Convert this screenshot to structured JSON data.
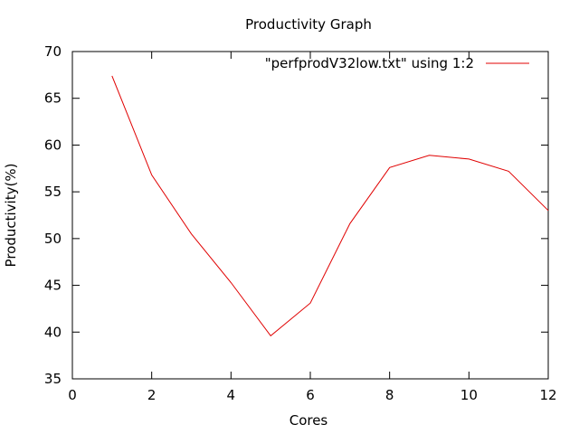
{
  "chart_data": {
    "type": "line",
    "title": "Productivity Graph",
    "xlabel": "Cores",
    "ylabel": "Productivity(%)",
    "xlim": [
      0,
      12
    ],
    "ylim": [
      35,
      70
    ],
    "x_ticks": [
      0,
      2,
      4,
      6,
      8,
      10,
      12
    ],
    "y_ticks": [
      35,
      40,
      45,
      50,
      55,
      60,
      65,
      70
    ],
    "grid": false,
    "legend_position": "top-right",
    "series": [
      {
        "name": "\"perfprodV32low.txt\" using 1:2",
        "color": "#e00000",
        "x": [
          1,
          2,
          3,
          4,
          5,
          6,
          7,
          8,
          9,
          10,
          11,
          12
        ],
        "y": [
          67.4,
          56.8,
          50.5,
          45.3,
          39.6,
          43.1,
          51.6,
          57.6,
          58.9,
          58.5,
          57.2,
          53.0
        ]
      }
    ]
  }
}
